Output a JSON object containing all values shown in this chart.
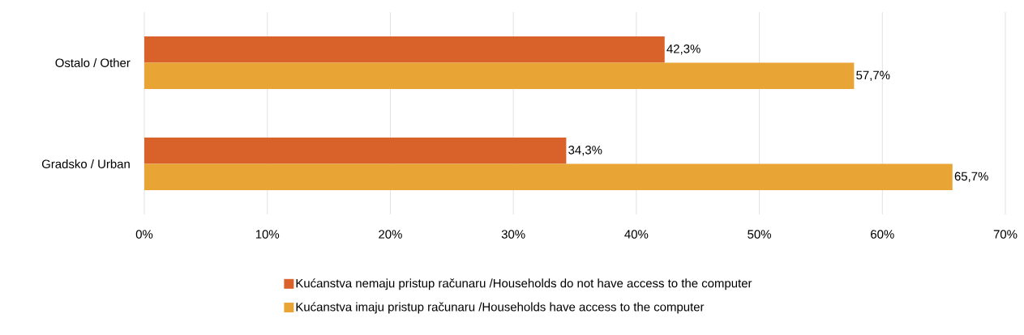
{
  "chart_data": {
    "type": "bar",
    "orientation": "horizontal",
    "categories": [
      "Ostalo / Other",
      "Gradsko / Urban"
    ],
    "series": [
      {
        "name": "Kućanstva nemaju pristup računaru /Households do not have access to the computer",
        "color": "#d9622b",
        "values": [
          42.3,
          34.3
        ],
        "value_labels": [
          "42,3%",
          "34,3%"
        ]
      },
      {
        "name": "Kućanstva imaju pristup računaru /Households have access to the computer",
        "color": "#e8a435",
        "values": [
          57.7,
          65.7
        ],
        "value_labels": [
          "57,7%",
          "65,7%"
        ]
      }
    ],
    "xlim": [
      0,
      70
    ],
    "xticks": [
      {
        "value": 0,
        "label": "0%"
      },
      {
        "value": 10,
        "label": "10%"
      },
      {
        "value": 20,
        "label": "20%"
      },
      {
        "value": 30,
        "label": "30%"
      },
      {
        "value": 40,
        "label": "40%"
      },
      {
        "value": 50,
        "label": "50%"
      },
      {
        "value": 60,
        "label": "60%"
      },
      {
        "value": 70,
        "label": "70%"
      }
    ],
    "grid": "x",
    "legend": "bottom"
  }
}
